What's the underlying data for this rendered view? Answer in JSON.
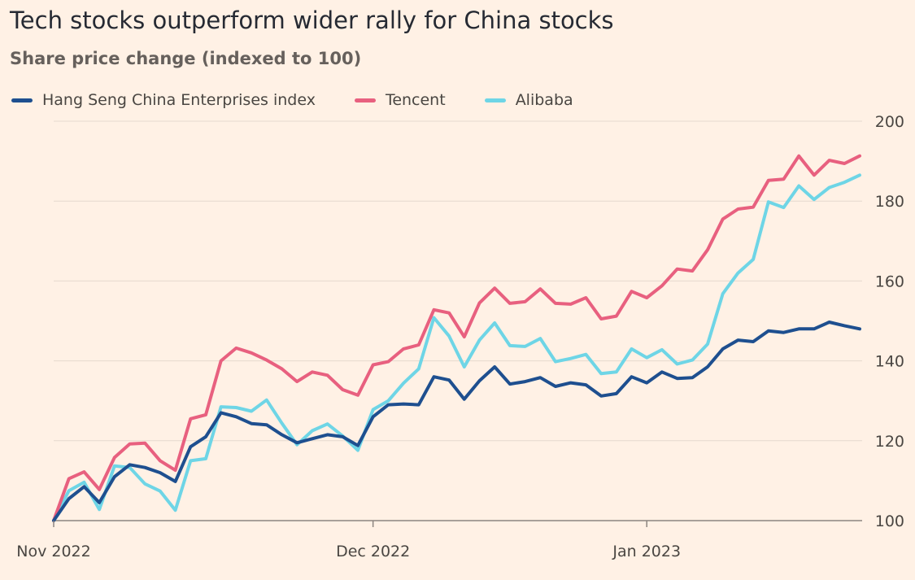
{
  "chart_data": {
    "type": "line",
    "title": "Tech stocks outperform wider rally for China stocks",
    "subtitle": "Share price change (indexed to 100)",
    "xlabel": "",
    "ylabel": "",
    "ylim": [
      100,
      200
    ],
    "yticks": [
      100,
      120,
      140,
      160,
      180,
      200
    ],
    "grid": true,
    "legend_position": "top-left",
    "x_ticks": [
      {
        "index": 0,
        "label": "Nov 2022"
      },
      {
        "index": 21,
        "label": "Dec 2022"
      },
      {
        "index": 39,
        "label": "Jan 2023"
      }
    ],
    "series": [
      {
        "name": "Hang Seng China Enterprises index",
        "color": "#1e4f8f",
        "values": [
          100,
          105.5,
          108.5,
          104.5,
          111,
          114,
          113.3,
          112,
          109.8,
          118.5,
          121,
          127,
          126,
          124.3,
          124,
          121.5,
          119.5,
          120.5,
          121.5,
          121,
          118.8,
          126,
          129,
          129.2,
          129,
          136,
          135.2,
          130.4,
          135,
          138.5,
          134.2,
          134.8,
          135.8,
          133.6,
          134.5,
          134,
          131.2,
          131.8,
          136,
          134.5,
          137.2,
          135.6,
          135.8,
          138.5,
          143,
          145.2,
          144.8,
          147.5,
          147.1,
          148,
          148,
          149.7,
          148.8,
          148
        ]
      },
      {
        "name": "Tencent",
        "color": "#e8607f",
        "values": [
          100,
          110.5,
          112.2,
          107.8,
          115.8,
          119.2,
          119.4,
          115,
          112.6,
          125.5,
          126.5,
          140,
          143.2,
          142,
          140.2,
          138,
          134.8,
          137.2,
          136.4,
          132.8,
          131.4,
          139,
          139.8,
          143,
          144,
          152.8,
          152,
          146,
          154.5,
          158.2,
          154.4,
          154.8,
          158,
          154.4,
          154.2,
          155.8,
          150.5,
          151.2,
          157.4,
          155.8,
          158.8,
          163,
          162.5,
          167.8,
          175.5,
          178,
          178.5,
          185.2,
          185.5,
          191.3,
          186.5,
          190.2,
          189.4,
          191.3
        ]
      },
      {
        "name": "Alibaba",
        "color": "#6ed5e6",
        "values": [
          100,
          107.5,
          109.6,
          102.8,
          113.7,
          113.3,
          109.2,
          107.4,
          102.6,
          115,
          115.5,
          128.5,
          128.3,
          127.4,
          130.2,
          124.4,
          119,
          122.5,
          124.2,
          121.2,
          117.6,
          127.8,
          130,
          134.4,
          138,
          150.8,
          146.2,
          138.5,
          145.2,
          149.5,
          143.8,
          143.6,
          145.6,
          139.8,
          140.6,
          141.6,
          136.8,
          137.2,
          143,
          140.8,
          142.8,
          139.2,
          140.2,
          144.2,
          156.8,
          162,
          165.4,
          179.8,
          178.4,
          183.8,
          180.4,
          183.4,
          184.7,
          186.5
        ]
      }
    ]
  }
}
